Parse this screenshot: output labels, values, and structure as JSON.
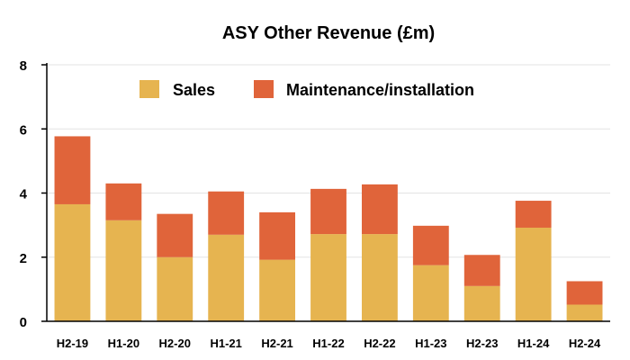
{
  "chart_data": {
    "type": "bar",
    "stacked": true,
    "title": "ASY Other Revenue (£m)",
    "xlabel": "",
    "ylabel": "",
    "ylim": [
      0,
      8
    ],
    "yticks": [
      "0",
      "2",
      "4",
      "6",
      "8"
    ],
    "grid": true,
    "legend_position": "top",
    "categories": [
      "H2-19",
      "H1-20",
      "H2-20",
      "H1-21",
      "H2-21",
      "H1-22",
      "H2-22",
      "H1-23",
      "H2-23",
      "H1-24",
      "H2-24"
    ],
    "series": [
      {
        "name": "Sales",
        "color": "#E6B450",
        "values": [
          3.65,
          3.15,
          2.0,
          2.7,
          1.92,
          2.72,
          2.72,
          1.75,
          1.1,
          2.92,
          0.52
        ]
      },
      {
        "name": "Maintenance/installation",
        "color": "#E0643A",
        "values": [
          2.12,
          1.15,
          1.35,
          1.35,
          1.48,
          1.41,
          1.55,
          1.23,
          0.97,
          0.84,
          0.73
        ]
      }
    ]
  }
}
